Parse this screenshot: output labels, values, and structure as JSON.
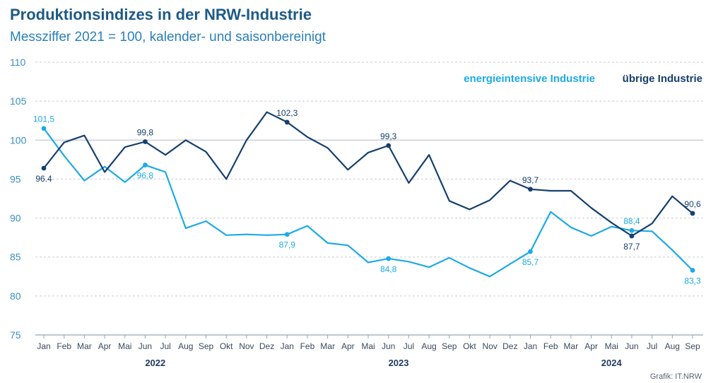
{
  "chart_data": {
    "type": "line",
    "title": "Produktionsindizes in der NRW-Industrie",
    "subtitle": "Messziffer 2021 = 100, kalender- und saisonbereinigt",
    "source": "Grafik: IT.NRW",
    "ylim": [
      75,
      110
    ],
    "yticks": [
      75,
      80,
      85,
      90,
      95,
      100,
      105,
      110
    ],
    "grid": true,
    "legend_position": "top-right",
    "x": [
      "Jan",
      "Feb",
      "Mar",
      "Apr",
      "Mai",
      "Jun",
      "Jul",
      "Aug",
      "Sep",
      "Okt",
      "Nov",
      "Dez",
      "Jan",
      "Feb",
      "Mar",
      "Apr",
      "Mai",
      "Jun",
      "Jul",
      "Aug",
      "Sep",
      "Okt",
      "Nov",
      "Dez",
      "Jan",
      "Feb",
      "Mar",
      "Apr",
      "Mai",
      "Jun",
      "Jul",
      "Aug",
      "Sep"
    ],
    "years": [
      {
        "label": "2022",
        "center_index": 5.5
      },
      {
        "label": "2023",
        "center_index": 17.5
      },
      {
        "label": "2024",
        "center_index": 28
      }
    ],
    "series": [
      {
        "name": "energieintensive Industrie",
        "color": "#1eaae7",
        "values": [
          101.5,
          98.0,
          94.8,
          96.6,
          94.6,
          96.8,
          95.9,
          88.7,
          89.6,
          87.8,
          87.9,
          87.8,
          87.9,
          89.0,
          86.8,
          86.5,
          84.3,
          84.8,
          84.4,
          83.7,
          84.9,
          83.6,
          82.5,
          84.1,
          85.7,
          90.8,
          88.8,
          87.7,
          88.9,
          88.4,
          88.3,
          85.9,
          83.3
        ],
        "labels": [
          {
            "index": 0,
            "text": "101,5",
            "pos": "above"
          },
          {
            "index": 5,
            "text": "96,8",
            "pos": "below"
          },
          {
            "index": 12,
            "text": "87,9",
            "pos": "below"
          },
          {
            "index": 17,
            "text": "84,8",
            "pos": "below"
          },
          {
            "index": 24,
            "text": "85,7",
            "pos": "below"
          },
          {
            "index": 29,
            "text": "88,4",
            "pos": "above"
          },
          {
            "index": 32,
            "text": "83,3",
            "pos": "below"
          }
        ]
      },
      {
        "name": "übrige Industrie",
        "color": "#16406d",
        "values": [
          96.4,
          99.7,
          100.6,
          95.9,
          99.1,
          99.8,
          98.1,
          100.0,
          98.5,
          95.0,
          100.0,
          103.6,
          102.3,
          100.4,
          99.0,
          96.2,
          98.4,
          99.3,
          94.5,
          98.1,
          92.2,
          91.1,
          92.3,
          94.8,
          93.7,
          93.5,
          93.5,
          91.3,
          89.4,
          87.7,
          89.3,
          92.8,
          90.6
        ],
        "labels": [
          {
            "index": 0,
            "text": "96.4",
            "pos": "below"
          },
          {
            "index": 5,
            "text": "99,8",
            "pos": "above"
          },
          {
            "index": 12,
            "text": "102,3",
            "pos": "above"
          },
          {
            "index": 17,
            "text": "99,3",
            "pos": "above"
          },
          {
            "index": 24,
            "text": "93,7",
            "pos": "above"
          },
          {
            "index": 29,
            "text": "87,7",
            "pos": "below"
          },
          {
            "index": 32,
            "text": "90,6",
            "pos": "above"
          }
        ]
      }
    ]
  }
}
